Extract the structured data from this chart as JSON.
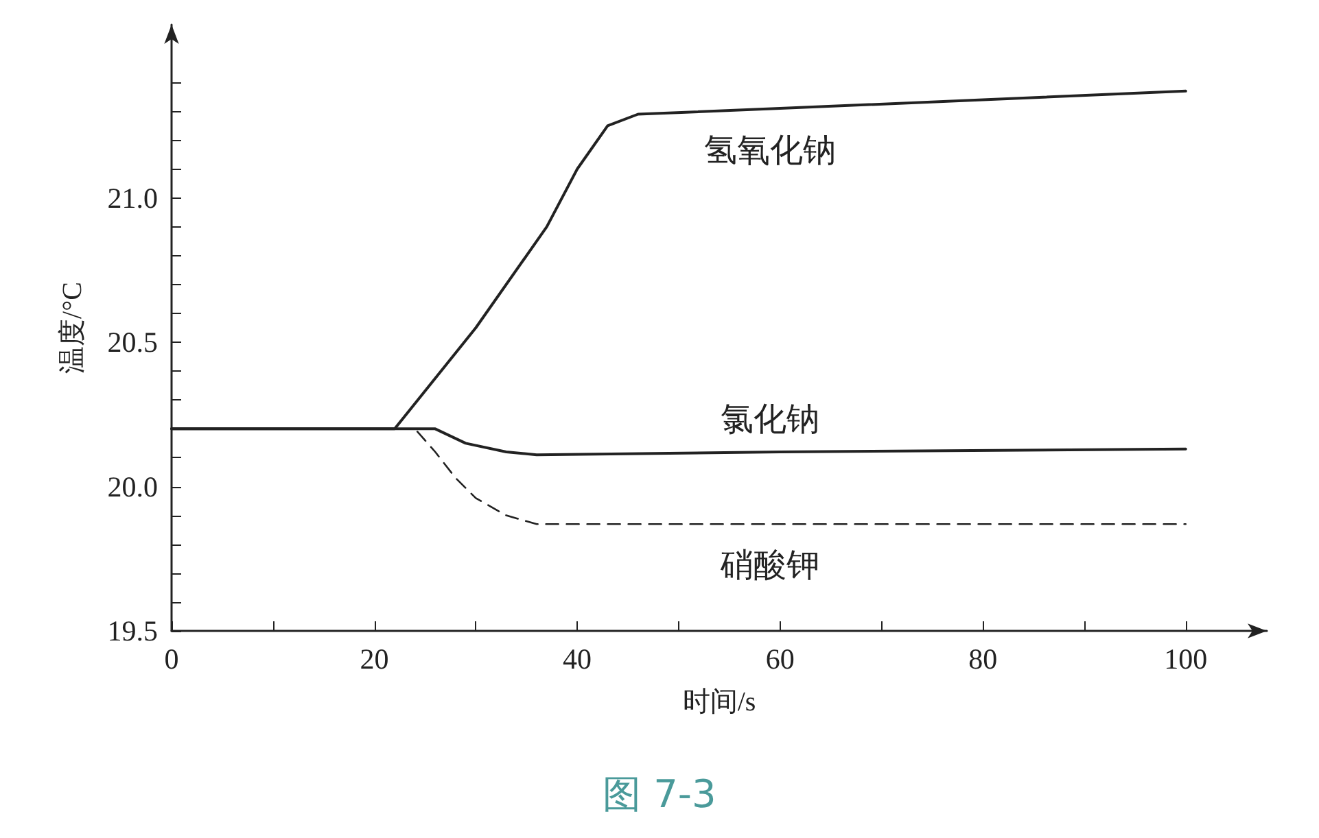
{
  "chart_data": {
    "type": "line",
    "xlabel": "时间/s",
    "ylabel": "温度/°C",
    "annotations": [
      "图 7-3"
    ],
    "xlim": [
      0,
      108
    ],
    "ylim": [
      19.5,
      21.6
    ],
    "xticks": [
      0,
      {
        "value": 10,
        "label": null
      },
      20,
      {
        "value": 30,
        "label": null
      },
      40,
      {
        "value": 50,
        "label": null
      },
      60,
      {
        "value": 70,
        "label": null
      },
      80,
      {
        "value": 90,
        "label": null
      },
      100
    ],
    "yticks": [
      {
        "value": 19.5,
        "label": "19.5"
      },
      {
        "value": 19.6,
        "label": null
      },
      {
        "value": 19.7,
        "label": null
      },
      {
        "value": 19.8,
        "label": null
      },
      {
        "value": 19.9,
        "label": null
      },
      {
        "value": 20.0,
        "label": "20.0"
      },
      {
        "value": 20.1,
        "label": null
      },
      {
        "value": 20.2,
        "label": null
      },
      {
        "value": 20.3,
        "label": null
      },
      {
        "value": 20.4,
        "label": null
      },
      {
        "value": 20.5,
        "label": "20.5"
      },
      {
        "value": 20.6,
        "label": null
      },
      {
        "value": 20.7,
        "label": null
      },
      {
        "value": 20.8,
        "label": null
      },
      {
        "value": 20.9,
        "label": null
      },
      {
        "value": 21.0,
        "label": "21.0"
      },
      {
        "value": 21.1,
        "label": null
      },
      {
        "value": 21.2,
        "label": null
      },
      {
        "value": 21.3,
        "label": null
      },
      {
        "value": 21.4,
        "label": null
      }
    ],
    "grid": false,
    "legend": false,
    "marker": "none",
    "series": [
      {
        "name": "氢氧化钠",
        "color": "#222222",
        "line_style": "solid",
        "x": [
          0,
          22,
          30,
          37,
          40,
          43,
          46,
          60,
          80,
          100
        ],
        "values": [
          20.2,
          20.2,
          20.55,
          20.9,
          21.1,
          21.25,
          21.29,
          21.31,
          21.34,
          21.37
        ]
      },
      {
        "name": "氯化钠",
        "color": "#222222",
        "line_style": "solid",
        "x": [
          0,
          26,
          29,
          33,
          36,
          60,
          100
        ],
        "values": [
          20.2,
          20.2,
          20.15,
          20.12,
          20.11,
          20.12,
          20.13
        ]
      },
      {
        "name": "硝酸钾",
        "color": "#222222",
        "line_style": "dashed",
        "x": [
          0,
          24,
          26,
          28,
          30,
          33,
          36,
          100
        ],
        "values": [
          20.2,
          20.2,
          20.12,
          20.03,
          19.96,
          19.9,
          19.87,
          19.87
        ]
      }
    ]
  }
}
